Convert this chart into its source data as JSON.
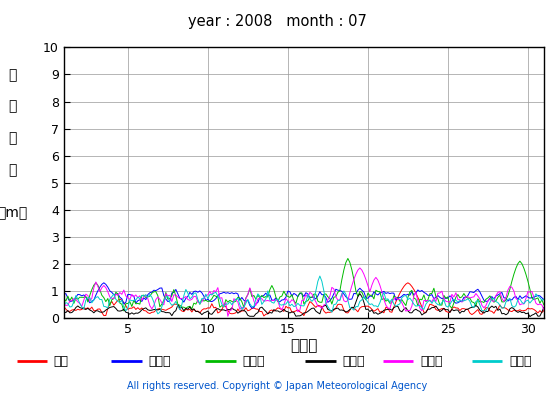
{
  "title": "year : 2008   month : 07",
  "xlabel": "（日）",
  "ylabel_chars": [
    "有",
    "義",
    "波",
    "高",
    "（m）"
  ],
  "xlim": [
    1,
    31
  ],
  "ylim": [
    0,
    10
  ],
  "yticks": [
    0,
    1,
    2,
    3,
    4,
    5,
    6,
    7,
    8,
    9,
    10
  ],
  "xticks": [
    5,
    10,
    15,
    20,
    25,
    30
  ],
  "grid_color": "#999999",
  "bg_color": "#ffffff",
  "copyright": "All rights reserved. Copyright © Japan Meteorological Agency",
  "copyright_color": "#0055cc",
  "series": [
    {
      "name": "松前",
      "color": "#ff0000"
    },
    {
      "name": "江ノ島",
      "color": "#0000ff"
    },
    {
      "name": "石庫崎",
      "color": "#00bb00"
    },
    {
      "name": "経ケ岸",
      "color": "#000000"
    },
    {
      "name": "福江島",
      "color": "#ff00ff"
    },
    {
      "name": "佐多岸",
      "color": "#00cccc"
    }
  ]
}
